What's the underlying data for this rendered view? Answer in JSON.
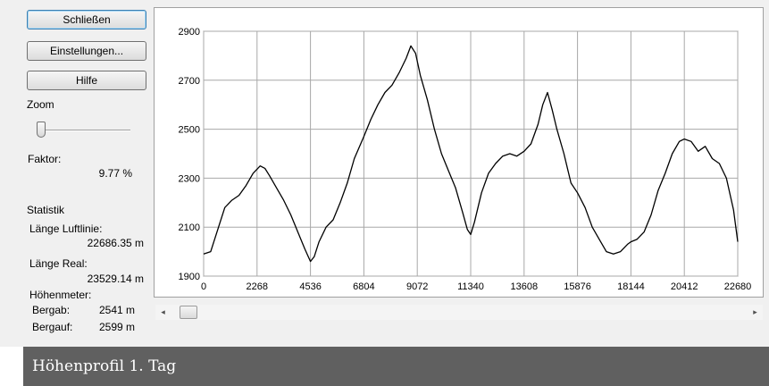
{
  "window": {
    "buttons": {
      "close": "Schließen",
      "settings": "Einstellungen...",
      "help": "Hilfe"
    },
    "zoom": {
      "label": "Zoom",
      "level": 0.0,
      "factor_label": "Faktor:",
      "factor_value": "9.77 %"
    },
    "stats": {
      "title": "Statistik",
      "air_length_label": "Länge Luftlinie:",
      "air_length_value": "22686.35 m",
      "real_length_label": "Länge Real:",
      "real_length_value": "23529.14 m",
      "elevation_label": "Höhenmeter:",
      "descent_label": "Bergab:",
      "descent_value": "2541 m",
      "ascent_label": "Bergauf:",
      "ascent_value": "2599 m"
    },
    "scrollbar": {
      "left_arrow": "◂",
      "right_arrow": "▸",
      "position": 0.0
    }
  },
  "caption": "Höhenprofil 1. Tag",
  "chart_data": {
    "type": "line",
    "title": "",
    "xlabel": "",
    "ylabel": "",
    "xlim": [
      0,
      22680
    ],
    "ylim": [
      1900,
      2900
    ],
    "x_ticks": [
      "0",
      "2268",
      "4536",
      "6804",
      "9072",
      "11340",
      "13608",
      "15876",
      "18144",
      "20412",
      "22680"
    ],
    "y_ticks": [
      "1900",
      "2100",
      "2300",
      "2500",
      "2700",
      "2900"
    ],
    "grid": true,
    "line_color": "#000000",
    "series": [
      {
        "x": [
          0,
          300,
          600,
          900,
          1200,
          1500,
          1800,
          2100,
          2400,
          2600,
          2800,
          3100,
          3400,
          3700,
          4000,
          4300,
          4536,
          4700,
          4900,
          5200,
          5500,
          5800,
          6100,
          6400,
          6804,
          7100,
          7400,
          7700,
          8000,
          8300,
          8600,
          8800,
          9000,
          9200,
          9500,
          9800,
          10100,
          10400,
          10700,
          11000,
          11200,
          11340,
          11500,
          11800,
          12100,
          12400,
          12700,
          13000,
          13300,
          13608,
          13900,
          14200,
          14400,
          14600,
          14800,
          15000,
          15300,
          15600,
          15876,
          16200,
          16500,
          16800,
          17100,
          17400,
          17700,
          18000,
          18144,
          18400,
          18700,
          19000,
          19300,
          19600,
          19900,
          20200,
          20412,
          20700,
          21000,
          21300,
          21600,
          21900,
          22200,
          22500,
          22680
        ],
        "y": [
          1990,
          2000,
          2090,
          2180,
          2210,
          2230,
          2270,
          2320,
          2350,
          2340,
          2310,
          2260,
          2210,
          2150,
          2080,
          2010,
          1960,
          1980,
          2040,
          2100,
          2130,
          2200,
          2280,
          2380,
          2470,
          2540,
          2600,
          2650,
          2680,
          2730,
          2790,
          2840,
          2810,
          2720,
          2620,
          2500,
          2400,
          2330,
          2260,
          2160,
          2090,
          2070,
          2120,
          2240,
          2320,
          2360,
          2390,
          2400,
          2390,
          2410,
          2440,
          2520,
          2600,
          2650,
          2580,
          2500,
          2400,
          2280,
          2240,
          2180,
          2100,
          2050,
          2000,
          1990,
          2000,
          2030,
          2040,
          2050,
          2080,
          2150,
          2250,
          2320,
          2400,
          2450,
          2460,
          2450,
          2410,
          2430,
          2380,
          2360,
          2300,
          2170,
          2040
        ]
      }
    ]
  }
}
